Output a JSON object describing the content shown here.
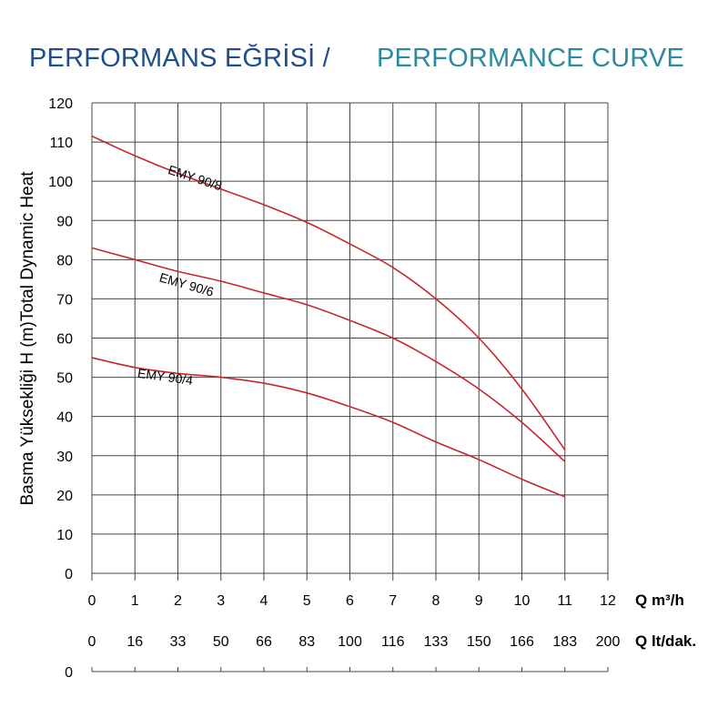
{
  "header": {
    "title_tr": "PERFORMANS EĞRİSİ /",
    "title_en": "PERFORMANCE CURVE"
  },
  "chart_data": {
    "type": "line",
    "title": "PERFORMANS EĞRİSİ / PERFORMANCE CURVE",
    "ylabel": "Basma Yüksekliği H (m)Total Dynamic Heat",
    "ylim": [
      0,
      120
    ],
    "yticks": [
      "0",
      "10",
      "20",
      "30",
      "40",
      "50",
      "60",
      "70",
      "80",
      "90",
      "100",
      "110",
      "120"
    ],
    "x_primary": {
      "label": "Q m³/h",
      "range": [
        0,
        12
      ],
      "ticks": [
        "0",
        "1",
        "2",
        "3",
        "4",
        "5",
        "6",
        "7",
        "8",
        "9",
        "10",
        "11",
        "12"
      ]
    },
    "x_secondary": {
      "label": "Q lt/dak.",
      "ticks": [
        "0",
        "16",
        "33",
        "50",
        "66",
        "83",
        "100",
        "116",
        "133",
        "150",
        "166",
        "183",
        "200"
      ],
      "axis_zero": "0"
    },
    "grid": true,
    "line_color": "#c8262b",
    "series": [
      {
        "name": "EMY 90/8",
        "x": [
          0,
          1,
          2,
          3,
          4,
          5,
          6,
          7,
          8,
          9,
          10,
          11
        ],
        "y": [
          111.5,
          106.5,
          102,
          98,
          94,
          89.5,
          84,
          78,
          70,
          60,
          47,
          31.5
        ]
      },
      {
        "name": "EMY 90/6",
        "x": [
          0,
          1,
          2,
          3,
          4,
          5,
          6,
          7,
          8,
          9,
          10,
          11
        ],
        "y": [
          83,
          80,
          77,
          74.5,
          71.5,
          68.5,
          64.5,
          60,
          54,
          47,
          38.5,
          28.5
        ]
      },
      {
        "name": "EMY 90/4",
        "x": [
          0,
          1,
          2,
          3,
          4,
          5,
          6,
          7,
          8,
          9,
          10,
          11
        ],
        "y": [
          55,
          52.5,
          51,
          50,
          48.5,
          46,
          42.5,
          38.5,
          33.5,
          29,
          24,
          19.5
        ]
      }
    ]
  }
}
